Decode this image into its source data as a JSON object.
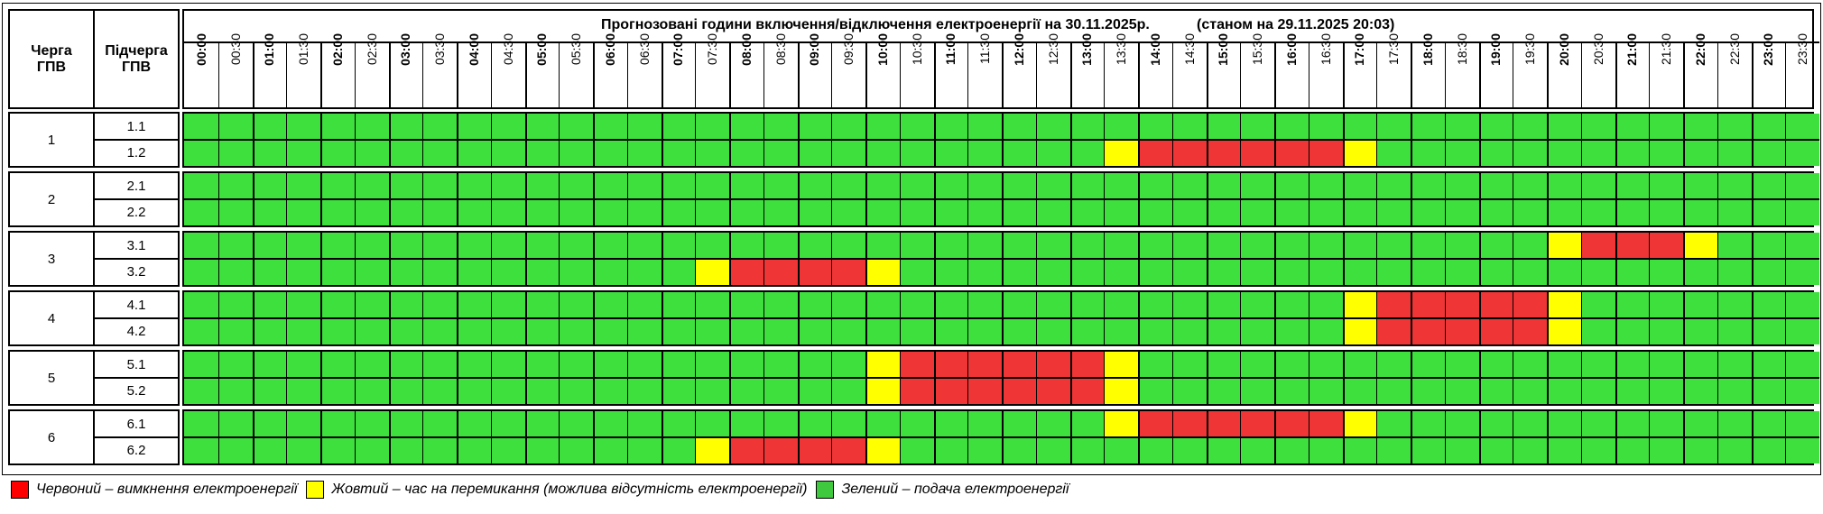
{
  "header": {
    "col_queue": "Черга\nГПВ",
    "col_subqueue": "Підчерга\nГПВ",
    "title": "Прогнозовані години включення/відключення електроенергії на 30.11.2025р.",
    "as_of": "(станом на 29.11.2025 20:03)"
  },
  "times": [
    "00:00",
    "00:30",
    "01:00",
    "01:30",
    "02:00",
    "02:30",
    "03:00",
    "03:30",
    "04:00",
    "04:30",
    "05:00",
    "05:30",
    "06:00",
    "06:30",
    "07:00",
    "07:30",
    "08:00",
    "08:30",
    "09:00",
    "09:30",
    "10:00",
    "10:30",
    "11:00",
    "11:30",
    "12:00",
    "12:30",
    "13:00",
    "13:30",
    "14:00",
    "14:30",
    "15:00",
    "15:30",
    "16:00",
    "16:30",
    "17:00",
    "17:30",
    "18:00",
    "18:30",
    "19:00",
    "19:30",
    "20:00",
    "20:30",
    "21:00",
    "21:30",
    "22:00",
    "22:30",
    "23:00",
    "23:30"
  ],
  "colors": {
    "green": "#3ee03e",
    "red": "#ef3535",
    "yellow": "#ffff00"
  },
  "groups": [
    {
      "queue": "1",
      "subqueues": [
        {
          "label": "1.1",
          "red": [],
          "yellow": []
        },
        {
          "label": "1.2",
          "red": [
            "14:00",
            "14:30",
            "15:00",
            "15:30",
            "16:00",
            "16:30"
          ],
          "yellow": [
            "13:30",
            "17:00"
          ]
        }
      ]
    },
    {
      "queue": "2",
      "subqueues": [
        {
          "label": "2.1",
          "red": [],
          "yellow": []
        },
        {
          "label": "2.2",
          "red": [],
          "yellow": []
        }
      ]
    },
    {
      "queue": "3",
      "subqueues": [
        {
          "label": "3.1",
          "red": [
            "20:30",
            "21:00",
            "21:30"
          ],
          "yellow": [
            "20:00",
            "22:00"
          ]
        },
        {
          "label": "3.2",
          "red": [
            "08:00",
            "08:30",
            "09:00",
            "09:30"
          ],
          "yellow": [
            "07:30",
            "10:00"
          ]
        }
      ]
    },
    {
      "queue": "4",
      "subqueues": [
        {
          "label": "4.1",
          "red": [
            "17:30",
            "18:00",
            "18:30",
            "19:00",
            "19:30"
          ],
          "yellow": [
            "17:00",
            "20:00"
          ]
        },
        {
          "label": "4.2",
          "red": [
            "17:30",
            "18:00",
            "18:30",
            "19:00",
            "19:30"
          ],
          "yellow": [
            "17:00",
            "20:00"
          ]
        }
      ]
    },
    {
      "queue": "5",
      "subqueues": [
        {
          "label": "5.1",
          "red": [
            "10:30",
            "11:00",
            "11:30",
            "12:00",
            "12:30",
            "13:00"
          ],
          "yellow": [
            "10:00",
            "13:30"
          ]
        },
        {
          "label": "5.2",
          "red": [
            "10:30",
            "11:00",
            "11:30",
            "12:00",
            "12:30",
            "13:00"
          ],
          "yellow": [
            "10:00",
            "13:30"
          ]
        }
      ]
    },
    {
      "queue": "6",
      "subqueues": [
        {
          "label": "6.1",
          "red": [
            "14:00",
            "14:30",
            "15:00",
            "15:30",
            "16:00",
            "16:30"
          ],
          "yellow": [
            "13:30",
            "17:00"
          ]
        },
        {
          "label": "6.2",
          "red": [
            "08:00",
            "08:30",
            "09:00",
            "09:30"
          ],
          "yellow": [
            "07:30",
            "10:00"
          ]
        }
      ]
    }
  ],
  "legend": {
    "red_label": "Червоний – вимкнення електроенергії",
    "yellow_label": "Жовтий – час на перемикання (можлива відсутність електроенергії)",
    "green_label": "Зелений – подача електроенергії"
  }
}
